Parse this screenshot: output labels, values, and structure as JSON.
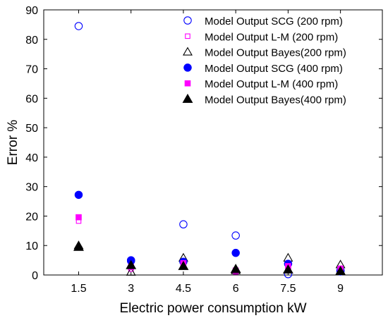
{
  "chart_data": {
    "type": "scatter",
    "title": "",
    "xlabel": "Electric power consumption  kW",
    "ylabel": "Error %",
    "xlim": [
      0.5,
      10.2
    ],
    "ylim": [
      0,
      90
    ],
    "xticks": [
      1.5,
      3,
      4.5,
      6,
      7.5,
      9
    ],
    "xtick_labels": [
      "1.5",
      "3",
      "4.5",
      "6",
      "7.5",
      "9"
    ],
    "yticks": [
      0,
      10,
      20,
      30,
      40,
      50,
      60,
      70,
      80,
      90
    ],
    "ytick_labels": [
      "0",
      "10",
      "20",
      "30",
      "40",
      "50",
      "60",
      "70",
      "80",
      "90"
    ],
    "grid": false,
    "legend_position": "top-right",
    "series": [
      {
        "name": "Model Output SCG (200 rpm)",
        "marker": "circle",
        "filled": false,
        "color": "#0000ff",
        "x": [
          1.5,
          3,
          4.5,
          6,
          7.5,
          9
        ],
        "y": [
          84.5,
          4.8,
          17.2,
          13.4,
          0.3,
          1.2
        ]
      },
      {
        "name": "Model Output L-M (200 rpm)",
        "marker": "square",
        "filled": false,
        "color": "#ff00ff",
        "x": [
          1.5,
          3,
          4.5,
          6,
          7.5,
          9
        ],
        "y": [
          18.3,
          2.0,
          3.5,
          1.0,
          2.3,
          2.3
        ]
      },
      {
        "name": "Model Output Bayes(200 rpm)",
        "marker": "triangle",
        "filled": false,
        "color": "#000000",
        "x": [
          1.5,
          3,
          4.5,
          6,
          7.5,
          9
        ],
        "y": [
          10.0,
          1.0,
          5.8,
          1.5,
          5.8,
          3.5
        ]
      },
      {
        "name": "Model Output SCG (400 rpm)",
        "marker": "circle",
        "filled": true,
        "color": "#0000ff",
        "x": [
          1.5,
          3,
          4.5,
          6,
          7.5,
          9
        ],
        "y": [
          27.2,
          5.0,
          4.5,
          7.5,
          3.8,
          1.5
        ]
      },
      {
        "name": "Model Output L-M (400 rpm)",
        "marker": "square",
        "filled": true,
        "color": "#ff00ff",
        "x": [
          1.5,
          3,
          4.5,
          6,
          7.5,
          9
        ],
        "y": [
          19.6,
          2.7,
          4.0,
          1.5,
          3.0,
          2.0
        ]
      },
      {
        "name": "Model Output Bayes(400 rpm)",
        "marker": "triangle",
        "filled": true,
        "color": "#000000",
        "x": [
          1.5,
          3,
          4.5,
          6,
          7.5,
          9
        ],
        "y": [
          9.5,
          3.3,
          3.0,
          2.0,
          1.8,
          1.3
        ]
      }
    ]
  }
}
